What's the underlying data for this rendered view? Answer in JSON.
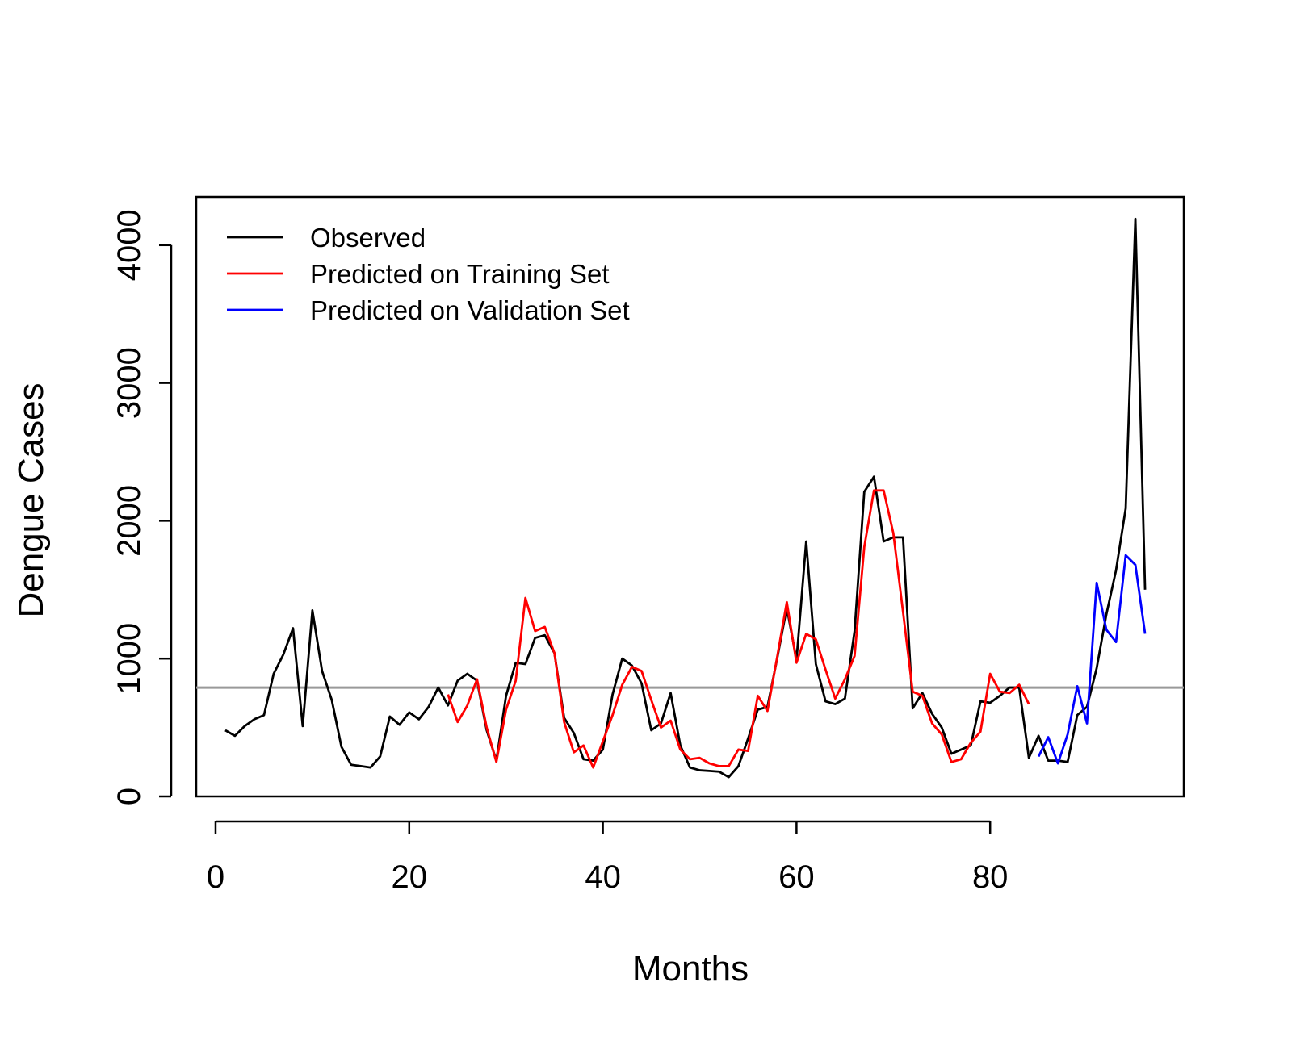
{
  "chart_data": {
    "type": "line",
    "title": "",
    "xlabel": "Months",
    "ylabel": "Dengue Cases",
    "xlim": [
      -2,
      100
    ],
    "ylim": [
      0,
      4350
    ],
    "x_ticks": [
      0,
      20,
      40,
      60,
      80
    ],
    "y_ticks": [
      0,
      1000,
      2000,
      3000,
      4000
    ],
    "legend_position": "top-left",
    "reference_line": {
      "y": 790,
      "color": "#999999"
    },
    "series": [
      {
        "name": "Observed",
        "color": "#000000",
        "x_start": 1,
        "values": [
          480,
          440,
          510,
          560,
          590,
          890,
          1030,
          1220,
          510,
          1350,
          910,
          700,
          360,
          230,
          220,
          210,
          290,
          580,
          520,
          610,
          560,
          650,
          790,
          660,
          840,
          890,
          840,
          480,
          260,
          730,
          970,
          960,
          1150,
          1170,
          1040,
          570,
          460,
          270,
          260,
          340,
          740,
          1000,
          950,
          820,
          480,
          530,
          750,
          370,
          210,
          190,
          185,
          180,
          140,
          220,
          420,
          630,
          650,
          1000,
          1370,
          990,
          1850,
          960,
          690,
          670,
          710,
          1200,
          2210,
          2320,
          1850,
          1880,
          1880,
          640,
          750,
          600,
          500,
          310,
          340,
          370,
          690,
          680,
          730,
          790,
          790,
          280,
          440,
          260,
          260,
          250,
          590,
          650,
          930,
          1320,
          1640,
          2090,
          4190,
          1500
        ]
      },
      {
        "name": "Predicted on Training Set",
        "color": "#ff0000",
        "x_start": 24,
        "values": [
          740,
          540,
          660,
          850,
          500,
          250,
          630,
          840,
          1440,
          1200,
          1230,
          1040,
          540,
          320,
          370,
          210,
          400,
          590,
          810,
          940,
          910,
          700,
          500,
          550,
          340,
          270,
          280,
          240,
          220,
          220,
          340,
          330,
          730,
          620,
          1010,
          1410,
          970,
          1180,
          1140,
          920,
          710,
          850,
          1020,
          1810,
          2220,
          2220,
          1910,
          1340,
          760,
          730,
          530,
          450,
          250,
          270,
          390,
          470,
          890,
          760,
          750,
          810,
          670
        ]
      },
      {
        "name": "Predicted on Validation Set",
        "color": "#0000ff",
        "x_start": 85,
        "values": [
          290,
          430,
          240,
          450,
          800,
          530,
          1550,
          1210,
          1120,
          1750,
          1680,
          1180
        ]
      }
    ]
  }
}
